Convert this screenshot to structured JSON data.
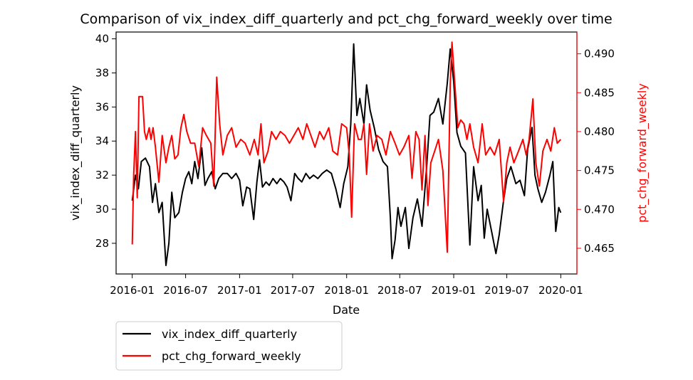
{
  "chart_data": {
    "type": "line",
    "title": "Comparison of vix_index_diff_quarterly and pct_chg_forward_weekly over time",
    "xlabel": "Date",
    "ylabel_left": "vix_index_diff_quarterly",
    "ylabel_right": "pct_chg_forward_weekly",
    "x_ticks": [
      "2016-01",
      "2016-07",
      "2017-01",
      "2017-07",
      "2018-01",
      "2018-07",
      "2019-01",
      "2019-07",
      "2020-01"
    ],
    "x_range": [
      "2015-11-07",
      "2020-02-25"
    ],
    "y_left_ticks": [
      28,
      30,
      32,
      34,
      36,
      38,
      40
    ],
    "y_left_range": [
      26.2,
      40.4
    ],
    "y_right_ticks": [
      0.465,
      0.47,
      0.475,
      0.48,
      0.485,
      0.49
    ],
    "y_right_range": [
      0.4617,
      0.4928
    ],
    "legend": "below-left",
    "grid": false,
    "colors": {
      "left_series": "#000000",
      "right_series": "#ff0000",
      "right_axis": "#ff0000"
    },
    "series": [
      {
        "name": "vix_index_diff_quarterly",
        "axis": "left",
        "color": "#000000",
        "points": [
          [
            "2016-01-01",
            30.5
          ],
          [
            "2016-01-12",
            32.0
          ],
          [
            "2016-01-22",
            31.2
          ],
          [
            "2016-02-01",
            32.8
          ],
          [
            "2016-02-15",
            33.0
          ],
          [
            "2016-02-29",
            32.5
          ],
          [
            "2016-03-10",
            30.4
          ],
          [
            "2016-03-20",
            31.5
          ],
          [
            "2016-04-01",
            29.8
          ],
          [
            "2016-04-12",
            30.4
          ],
          [
            "2016-04-25",
            26.7
          ],
          [
            "2016-05-05",
            28.0
          ],
          [
            "2016-05-15",
            31.0
          ],
          [
            "2016-05-25",
            29.5
          ],
          [
            "2016-06-08",
            29.8
          ],
          [
            "2016-06-20",
            31.0
          ],
          [
            "2016-07-01",
            31.8
          ],
          [
            "2016-07-12",
            32.2
          ],
          [
            "2016-07-22",
            31.5
          ],
          [
            "2016-08-01",
            32.8
          ],
          [
            "2016-08-12",
            31.8
          ],
          [
            "2016-08-25",
            33.6
          ],
          [
            "2016-09-05",
            31.4
          ],
          [
            "2016-09-15",
            31.8
          ],
          [
            "2016-09-28",
            32.2
          ],
          [
            "2016-10-10",
            31.2
          ],
          [
            "2016-10-22",
            31.8
          ],
          [
            "2016-11-05",
            32.1
          ],
          [
            "2016-11-20",
            32.1
          ],
          [
            "2016-12-05",
            31.8
          ],
          [
            "2016-12-20",
            32.1
          ],
          [
            "2017-01-01",
            31.7
          ],
          [
            "2017-01-12",
            30.2
          ],
          [
            "2017-01-25",
            31.3
          ],
          [
            "2017-02-05",
            31.2
          ],
          [
            "2017-02-18",
            29.4
          ],
          [
            "2017-03-01",
            31.6
          ],
          [
            "2017-03-10",
            32.9
          ],
          [
            "2017-03-20",
            31.3
          ],
          [
            "2017-04-01",
            31.6
          ],
          [
            "2017-04-12",
            31.4
          ],
          [
            "2017-04-25",
            31.8
          ],
          [
            "2017-05-08",
            31.5
          ],
          [
            "2017-05-20",
            31.8
          ],
          [
            "2017-06-01",
            31.6
          ],
          [
            "2017-06-12",
            31.3
          ],
          [
            "2017-06-25",
            30.5
          ],
          [
            "2017-07-08",
            32.1
          ],
          [
            "2017-07-20",
            31.8
          ],
          [
            "2017-08-01",
            31.6
          ],
          [
            "2017-08-15",
            32.1
          ],
          [
            "2017-08-28",
            31.8
          ],
          [
            "2017-09-10",
            32.0
          ],
          [
            "2017-09-25",
            31.8
          ],
          [
            "2017-10-10",
            32.1
          ],
          [
            "2017-10-25",
            32.3
          ],
          [
            "2017-11-10",
            32.1
          ],
          [
            "2017-11-25",
            31.2
          ],
          [
            "2017-12-10",
            30.1
          ],
          [
            "2017-12-22",
            31.5
          ],
          [
            "2018-01-05",
            32.5
          ],
          [
            "2018-01-15",
            35.0
          ],
          [
            "2018-01-25",
            39.7
          ],
          [
            "2018-02-05",
            35.5
          ],
          [
            "2018-02-15",
            36.5
          ],
          [
            "2018-03-01",
            35.0
          ],
          [
            "2018-03-10",
            37.3
          ],
          [
            "2018-03-22",
            35.8
          ],
          [
            "2018-04-05",
            34.8
          ],
          [
            "2018-04-20",
            33.5
          ],
          [
            "2018-05-05",
            32.8
          ],
          [
            "2018-05-20",
            32.5
          ],
          [
            "2018-05-30",
            29.5
          ],
          [
            "2018-06-05",
            27.1
          ],
          [
            "2018-06-15",
            28.2
          ],
          [
            "2018-06-25",
            30.1
          ],
          [
            "2018-07-05",
            29.0
          ],
          [
            "2018-07-20",
            30.1
          ],
          [
            "2018-08-01",
            27.7
          ],
          [
            "2018-08-15",
            29.5
          ],
          [
            "2018-08-30",
            30.6
          ],
          [
            "2018-09-15",
            29.0
          ],
          [
            "2018-10-01",
            32.5
          ],
          [
            "2018-10-12",
            35.5
          ],
          [
            "2018-10-25",
            35.7
          ],
          [
            "2018-11-10",
            36.5
          ],
          [
            "2018-11-25",
            35.0
          ],
          [
            "2018-12-10",
            37.4
          ],
          [
            "2018-12-20",
            39.4
          ],
          [
            "2019-01-01",
            37.5
          ],
          [
            "2019-01-12",
            34.5
          ],
          [
            "2019-01-25",
            33.7
          ],
          [
            "2019-02-10",
            33.3
          ],
          [
            "2019-02-25",
            27.9
          ],
          [
            "2019-03-10",
            32.5
          ],
          [
            "2019-03-25",
            30.5
          ],
          [
            "2019-04-05",
            31.4
          ],
          [
            "2019-04-15",
            28.3
          ],
          [
            "2019-04-25",
            30.0
          ],
          [
            "2019-05-10",
            28.7
          ],
          [
            "2019-05-25",
            27.4
          ],
          [
            "2019-06-05",
            28.5
          ],
          [
            "2019-06-20",
            30.5
          ],
          [
            "2019-07-01",
            31.8
          ],
          [
            "2019-07-15",
            32.5
          ],
          [
            "2019-08-01",
            31.5
          ],
          [
            "2019-08-15",
            31.7
          ],
          [
            "2019-08-30",
            30.8
          ],
          [
            "2019-09-10",
            33.5
          ],
          [
            "2019-09-25",
            34.8
          ],
          [
            "2019-10-05",
            32.0
          ],
          [
            "2019-10-15",
            31.2
          ],
          [
            "2019-10-28",
            30.4
          ],
          [
            "2019-11-10",
            31.0
          ],
          [
            "2019-11-25",
            32.0
          ],
          [
            "2019-12-05",
            32.8
          ],
          [
            "2019-12-15",
            28.7
          ],
          [
            "2019-12-25",
            30.1
          ],
          [
            "2020-01-01",
            29.8
          ]
        ]
      },
      {
        "name": "pct_chg_forward_weekly",
        "axis": "right",
        "color": "#ff0000",
        "points": [
          [
            "2016-01-01",
            0.4655
          ],
          [
            "2016-01-06",
            0.4745
          ],
          [
            "2016-01-12",
            0.48
          ],
          [
            "2016-01-18",
            0.4715
          ],
          [
            "2016-01-24",
            0.4845
          ],
          [
            "2016-02-05",
            0.4845
          ],
          [
            "2016-02-12",
            0.48
          ],
          [
            "2016-02-18",
            0.479
          ],
          [
            "2016-02-28",
            0.4805
          ],
          [
            "2016-03-05",
            0.479
          ],
          [
            "2016-03-12",
            0.4805
          ],
          [
            "2016-03-20",
            0.478
          ],
          [
            "2016-04-01",
            0.4735
          ],
          [
            "2016-04-12",
            0.4795
          ],
          [
            "2016-04-25",
            0.476
          ],
          [
            "2016-05-05",
            0.478
          ],
          [
            "2016-05-15",
            0.4795
          ],
          [
            "2016-05-25",
            0.4765
          ],
          [
            "2016-06-05",
            0.477
          ],
          [
            "2016-06-15",
            0.4805
          ],
          [
            "2016-06-25",
            0.4822
          ],
          [
            "2016-07-05",
            0.48
          ],
          [
            "2016-07-18",
            0.4785
          ],
          [
            "2016-08-01",
            0.4785
          ],
          [
            "2016-08-15",
            0.4755
          ],
          [
            "2016-08-28",
            0.4805
          ],
          [
            "2016-09-10",
            0.4795
          ],
          [
            "2016-09-25",
            0.4785
          ],
          [
            "2016-10-05",
            0.473
          ],
          [
            "2016-10-15",
            0.487
          ],
          [
            "2016-10-25",
            0.481
          ],
          [
            "2016-11-05",
            0.477
          ],
          [
            "2016-11-20",
            0.4795
          ],
          [
            "2016-12-05",
            0.4805
          ],
          [
            "2016-12-20",
            0.478
          ],
          [
            "2017-01-05",
            0.479
          ],
          [
            "2017-01-20",
            0.4785
          ],
          [
            "2017-02-05",
            0.477
          ],
          [
            "2017-02-20",
            0.479
          ],
          [
            "2017-03-05",
            0.477
          ],
          [
            "2017-03-15",
            0.481
          ],
          [
            "2017-03-25",
            0.476
          ],
          [
            "2017-04-08",
            0.4775
          ],
          [
            "2017-04-20",
            0.48
          ],
          [
            "2017-05-05",
            0.479
          ],
          [
            "2017-05-20",
            0.48
          ],
          [
            "2017-06-05",
            0.4795
          ],
          [
            "2017-06-20",
            0.4785
          ],
          [
            "2017-07-05",
            0.4795
          ],
          [
            "2017-07-20",
            0.4805
          ],
          [
            "2017-08-05",
            0.479
          ],
          [
            "2017-08-18",
            0.481
          ],
          [
            "2017-09-01",
            0.4795
          ],
          [
            "2017-09-15",
            0.478
          ],
          [
            "2017-10-01",
            0.48
          ],
          [
            "2017-10-15",
            0.479
          ],
          [
            "2017-11-01",
            0.4805
          ],
          [
            "2017-11-15",
            0.4775
          ],
          [
            "2017-12-01",
            0.477
          ],
          [
            "2017-12-15",
            0.481
          ],
          [
            "2018-01-01",
            0.4805
          ],
          [
            "2018-01-10",
            0.477
          ],
          [
            "2018-01-18",
            0.469
          ],
          [
            "2018-01-28",
            0.481
          ],
          [
            "2018-02-10",
            0.479
          ],
          [
            "2018-02-20",
            0.479
          ],
          [
            "2018-03-01",
            0.481
          ],
          [
            "2018-03-10",
            0.4745
          ],
          [
            "2018-03-20",
            0.481
          ],
          [
            "2018-04-01",
            0.4775
          ],
          [
            "2018-04-15",
            0.4795
          ],
          [
            "2018-05-01",
            0.479
          ],
          [
            "2018-05-15",
            0.477
          ],
          [
            "2018-05-30",
            0.48
          ],
          [
            "2018-06-15",
            0.4785
          ],
          [
            "2018-06-30",
            0.477
          ],
          [
            "2018-07-15",
            0.478
          ],
          [
            "2018-08-01",
            0.4795
          ],
          [
            "2018-08-12",
            0.474
          ],
          [
            "2018-08-25",
            0.48
          ],
          [
            "2018-09-05",
            0.479
          ],
          [
            "2018-09-15",
            0.4725
          ],
          [
            "2018-09-25",
            0.4795
          ],
          [
            "2018-10-05",
            0.4705
          ],
          [
            "2018-10-15",
            0.476
          ],
          [
            "2018-10-28",
            0.4775
          ],
          [
            "2018-11-10",
            0.479
          ],
          [
            "2018-11-25",
            0.475
          ],
          [
            "2018-12-10",
            0.4645
          ],
          [
            "2018-12-20",
            0.486
          ],
          [
            "2018-12-26",
            0.4915
          ],
          [
            "2019-01-05",
            0.486
          ],
          [
            "2019-01-15",
            0.4805
          ],
          [
            "2019-01-25",
            0.4815
          ],
          [
            "2019-02-05",
            0.481
          ],
          [
            "2019-02-15",
            0.479
          ],
          [
            "2019-02-25",
            0.481
          ],
          [
            "2019-03-10",
            0.478
          ],
          [
            "2019-03-25",
            0.476
          ],
          [
            "2019-04-08",
            0.481
          ],
          [
            "2019-04-20",
            0.477
          ],
          [
            "2019-05-05",
            0.478
          ],
          [
            "2019-05-20",
            0.477
          ],
          [
            "2019-06-05",
            0.479
          ],
          [
            "2019-06-20",
            0.471
          ],
          [
            "2019-07-01",
            0.476
          ],
          [
            "2019-07-12",
            0.478
          ],
          [
            "2019-07-25",
            0.476
          ],
          [
            "2019-08-10",
            0.4775
          ],
          [
            "2019-08-25",
            0.479
          ],
          [
            "2019-09-05",
            0.477
          ],
          [
            "2019-09-15",
            0.479
          ],
          [
            "2019-09-28",
            0.4842
          ],
          [
            "2019-10-08",
            0.476
          ],
          [
            "2019-10-20",
            0.473
          ],
          [
            "2019-11-01",
            0.4775
          ],
          [
            "2019-11-15",
            0.479
          ],
          [
            "2019-11-28",
            0.4775
          ],
          [
            "2019-12-10",
            0.4805
          ],
          [
            "2019-12-20",
            0.4785
          ],
          [
            "2020-01-01",
            0.479
          ]
        ]
      }
    ]
  }
}
